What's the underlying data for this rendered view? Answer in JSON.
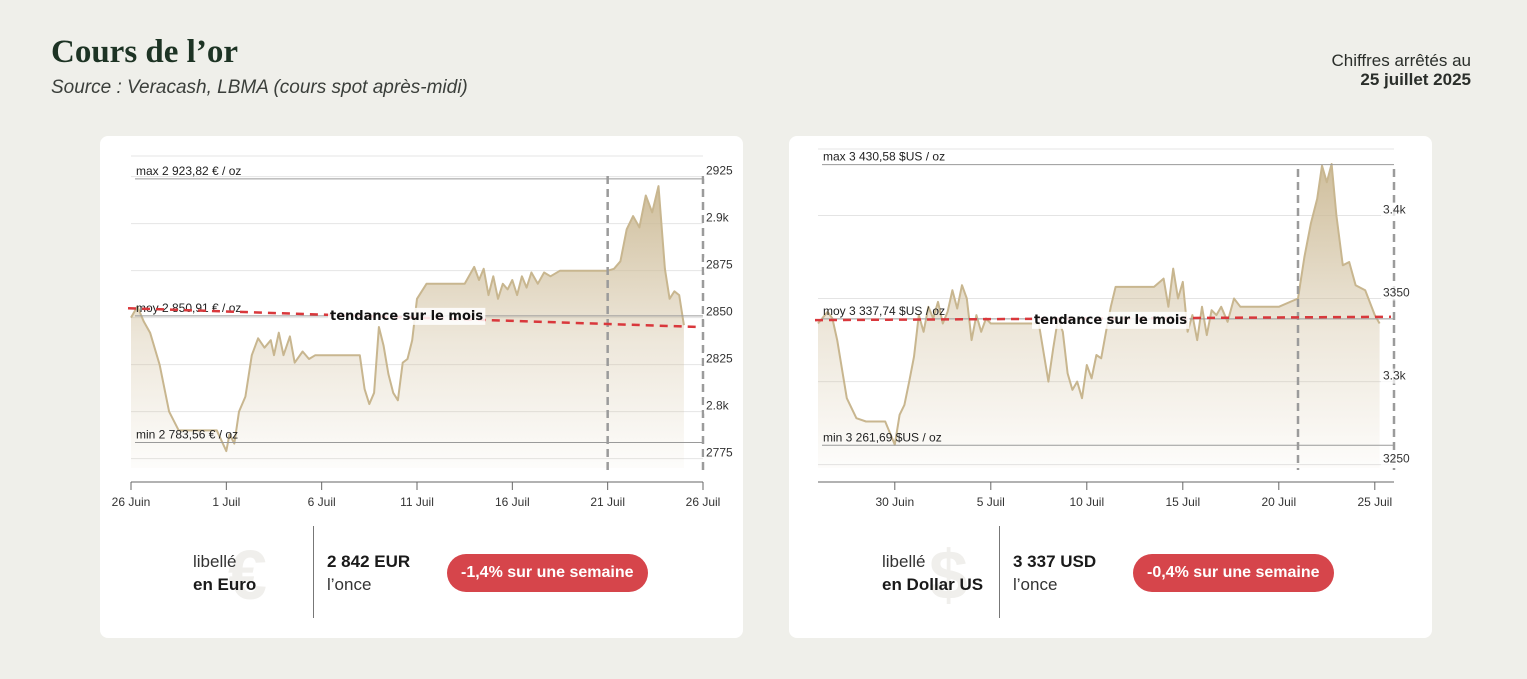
{
  "header": {
    "title": "Cours de l’or",
    "source": "Source : Veracash, LBMA (cours spot après-midi)",
    "asof_label": "Chiffres arrêtés au",
    "asof_date": "25 juillet 2025"
  },
  "colors": {
    "background": "#efefea",
    "line": "#c8b68f",
    "fill_top": "#cdbb97",
    "trend": "#d9383c",
    "badge": "#d6454b",
    "marker": "#9b9b9b"
  },
  "chart_data": [
    {
      "type": "area",
      "currency": "EUR",
      "x_start": "2025-06-26",
      "x_end": "2025-07-26",
      "ylim": [
        2770,
        2936
      ],
      "y_ticks": [
        {
          "value": 2925,
          "label": "2925"
        },
        {
          "value": 2900,
          "label": "2.9k"
        },
        {
          "value": 2875,
          "label": "2875"
        },
        {
          "value": 2850,
          "label": "2850"
        },
        {
          "value": 2825,
          "label": "2825"
        },
        {
          "value": 2800,
          "label": "2.8k"
        },
        {
          "value": 2775,
          "label": "2775"
        }
      ],
      "x_ticks": [
        {
          "date": "2025-06-26",
          "label": "26 Juin"
        },
        {
          "date": "2025-07-01",
          "label": "1 Juil"
        },
        {
          "date": "2025-07-06",
          "label": "6 Juil"
        },
        {
          "date": "2025-07-11",
          "label": "11 Juil"
        },
        {
          "date": "2025-07-16",
          "label": "16 Juil"
        },
        {
          "date": "2025-07-21",
          "label": "21 Juil"
        },
        {
          "date": "2025-07-26",
          "label": "26 Juil"
        }
      ],
      "ref_lines": {
        "max": {
          "value": 2923.82,
          "label": "max 2 923,82 € / oz"
        },
        "avg": {
          "value": 2850.91,
          "label": "moy 2 850,91 € / oz"
        },
        "min": {
          "value": 2783.56,
          "label": "min 2 783,56 € / oz"
        }
      },
      "trend": {
        "label": "tendance sur le mois",
        "start": 2855,
        "end": 2845
      },
      "week_marker": [
        "2025-07-21",
        "2025-07-26"
      ],
      "points": [
        [
          "2025-06-26",
          2850
        ],
        [
          "2025-06-26T08",
          2856
        ],
        [
          "2025-06-26T16",
          2848
        ],
        [
          "2025-06-27",
          2842
        ],
        [
          "2025-06-27T12",
          2825
        ],
        [
          "2025-06-28",
          2800
        ],
        [
          "2025-06-28T12",
          2790
        ],
        [
          "2025-06-29",
          2790
        ],
        [
          "2025-06-30",
          2790
        ],
        [
          "2025-06-30T12",
          2790
        ],
        [
          "2025-07-01",
          2779
        ],
        [
          "2025-07-01T04",
          2788
        ],
        [
          "2025-07-01T10",
          2783
        ],
        [
          "2025-07-01T16",
          2800
        ],
        [
          "2025-07-02",
          2808
        ],
        [
          "2025-07-02T08",
          2830
        ],
        [
          "2025-07-02T16",
          2839
        ],
        [
          "2025-07-03",
          2834
        ],
        [
          "2025-07-03T08",
          2838
        ],
        [
          "2025-07-03T12",
          2830
        ],
        [
          "2025-07-03T18",
          2842
        ],
        [
          "2025-07-04",
          2830
        ],
        [
          "2025-07-04T08",
          2840
        ],
        [
          "2025-07-04T14",
          2826
        ],
        [
          "2025-07-05",
          2832
        ],
        [
          "2025-07-05T08",
          2828
        ],
        [
          "2025-07-05T16",
          2830
        ],
        [
          "2025-07-06",
          2830
        ],
        [
          "2025-07-07",
          2830
        ],
        [
          "2025-07-07T12",
          2830
        ],
        [
          "2025-07-08",
          2830
        ],
        [
          "2025-07-08T06",
          2812
        ],
        [
          "2025-07-08T12",
          2804
        ],
        [
          "2025-07-08T18",
          2810
        ],
        [
          "2025-07-09",
          2845
        ],
        [
          "2025-07-09T06",
          2835
        ],
        [
          "2025-07-09T12",
          2820
        ],
        [
          "2025-07-09T18",
          2810
        ],
        [
          "2025-07-10",
          2806
        ],
        [
          "2025-07-10T06",
          2826
        ],
        [
          "2025-07-10T12",
          2828
        ],
        [
          "2025-07-10T18",
          2838
        ],
        [
          "2025-07-11",
          2860
        ],
        [
          "2025-07-11T12",
          2868
        ],
        [
          "2025-07-12",
          2868
        ],
        [
          "2025-07-13",
          2868
        ],
        [
          "2025-07-13T12",
          2868
        ],
        [
          "2025-07-14",
          2877
        ],
        [
          "2025-07-14T06",
          2870
        ],
        [
          "2025-07-14T12",
          2876
        ],
        [
          "2025-07-14T18",
          2862
        ],
        [
          "2025-07-15",
          2872
        ],
        [
          "2025-07-15T06",
          2860
        ],
        [
          "2025-07-15T12",
          2868
        ],
        [
          "2025-07-15T18",
          2865
        ],
        [
          "2025-07-16",
          2870
        ],
        [
          "2025-07-16T06",
          2862
        ],
        [
          "2025-07-16T12",
          2872
        ],
        [
          "2025-07-16T18",
          2866
        ],
        [
          "2025-07-17",
          2874
        ],
        [
          "2025-07-17T08",
          2868
        ],
        [
          "2025-07-17T16",
          2874
        ],
        [
          "2025-07-18",
          2872
        ],
        [
          "2025-07-18T12",
          2875
        ],
        [
          "2025-07-19",
          2875
        ],
        [
          "2025-07-20",
          2875
        ],
        [
          "2025-07-21",
          2875
        ],
        [
          "2025-07-21T08",
          2876
        ],
        [
          "2025-07-21T16",
          2880
        ],
        [
          "2025-07-22",
          2897
        ],
        [
          "2025-07-22T08",
          2904
        ],
        [
          "2025-07-22T16",
          2898
        ],
        [
          "2025-07-23",
          2915
        ],
        [
          "2025-07-23T08",
          2906
        ],
        [
          "2025-07-23T16",
          2920
        ],
        [
          "2025-07-24",
          2876
        ],
        [
          "2025-07-24T06",
          2860
        ],
        [
          "2025-07-24T12",
          2864
        ],
        [
          "2025-07-24T18",
          2862
        ],
        [
          "2025-07-25",
          2846
        ]
      ]
    },
    {
      "type": "area",
      "currency": "USD",
      "x_start": "2025-06-26",
      "x_end": "2025-07-26",
      "ylim": [
        3248,
        3440
      ],
      "y_ticks": [
        {
          "value": 3400,
          "label": "3.4k"
        },
        {
          "value": 3350,
          "label": "3350"
        },
        {
          "value": 3300,
          "label": "3.3k"
        },
        {
          "value": 3250,
          "label": "3250"
        }
      ],
      "x_ticks": [
        {
          "date": "2025-06-30",
          "label": "30 Juin"
        },
        {
          "date": "2025-07-05",
          "label": "5 Juil"
        },
        {
          "date": "2025-07-10",
          "label": "10 Juil"
        },
        {
          "date": "2025-07-15",
          "label": "15 Juil"
        },
        {
          "date": "2025-07-20",
          "label": "20 Juil"
        },
        {
          "date": "2025-07-25",
          "label": "25 Juil"
        }
      ],
      "ref_lines": {
        "max": {
          "value": 3430.58,
          "label": "max 3 430,58 $US / oz"
        },
        "avg": {
          "value": 3337.74,
          "label": "moy 3 337,74 $US / oz"
        },
        "min": {
          "value": 3261.69,
          "label": "min 3 261,69 $US / oz"
        }
      },
      "trend": {
        "label": "tendance sur le mois",
        "start": 3337,
        "end": 3339
      },
      "week_marker": [
        "2025-07-21",
        "2025-07-26"
      ],
      "points": [
        [
          "2025-06-26",
          3335
        ],
        [
          "2025-06-26T12",
          3342
        ],
        [
          "2025-06-26T18",
          3338
        ],
        [
          "2025-06-27",
          3325
        ],
        [
          "2025-06-27T12",
          3290
        ],
        [
          "2025-06-28",
          3278
        ],
        [
          "2025-06-28T12",
          3276
        ],
        [
          "2025-06-29",
          3276
        ],
        [
          "2025-06-29T12",
          3276
        ],
        [
          "2025-06-30",
          3262
        ],
        [
          "2025-06-30T06",
          3280
        ],
        [
          "2025-06-30T12",
          3286
        ],
        [
          "2025-06-30T18",
          3300
        ],
        [
          "2025-07-01",
          3315
        ],
        [
          "2025-07-01T06",
          3340
        ],
        [
          "2025-07-01T12",
          3330
        ],
        [
          "2025-07-01T18",
          3345
        ],
        [
          "2025-07-02",
          3338
        ],
        [
          "2025-07-02T06",
          3348
        ],
        [
          "2025-07-02T12",
          3335
        ],
        [
          "2025-07-02T18",
          3342
        ],
        [
          "2025-07-03",
          3355
        ],
        [
          "2025-07-03T06",
          3344
        ],
        [
          "2025-07-03T12",
          3358
        ],
        [
          "2025-07-03T18",
          3350
        ],
        [
          "2025-07-04",
          3325
        ],
        [
          "2025-07-04T06",
          3340
        ],
        [
          "2025-07-04T12",
          3330
        ],
        [
          "2025-07-04T18",
          3338
        ],
        [
          "2025-07-05",
          3335
        ],
        [
          "2025-07-06",
          3335
        ],
        [
          "2025-07-07",
          3335
        ],
        [
          "2025-07-07T12",
          3335
        ],
        [
          "2025-07-08",
          3300
        ],
        [
          "2025-07-08T06",
          3320
        ],
        [
          "2025-07-08T12",
          3338
        ],
        [
          "2025-07-08T18",
          3330
        ],
        [
          "2025-07-09",
          3305
        ],
        [
          "2025-07-09T06",
          3295
        ],
        [
          "2025-07-09T12",
          3300
        ],
        [
          "2025-07-09T18",
          3290
        ],
        [
          "2025-07-10",
          3310
        ],
        [
          "2025-07-10T06",
          3302
        ],
        [
          "2025-07-10T12",
          3316
        ],
        [
          "2025-07-10T18",
          3314
        ],
        [
          "2025-07-11",
          3330
        ],
        [
          "2025-07-11T06",
          3345
        ],
        [
          "2025-07-11T12",
          3357
        ],
        [
          "2025-07-12",
          3357
        ],
        [
          "2025-07-13",
          3357
        ],
        [
          "2025-07-13T12",
          3357
        ],
        [
          "2025-07-14",
          3362
        ],
        [
          "2025-07-14T06",
          3345
        ],
        [
          "2025-07-14T12",
          3368
        ],
        [
          "2025-07-14T18",
          3350
        ],
        [
          "2025-07-15",
          3360
        ],
        [
          "2025-07-15T06",
          3330
        ],
        [
          "2025-07-15T12",
          3340
        ],
        [
          "2025-07-15T18",
          3325
        ],
        [
          "2025-07-16",
          3345
        ],
        [
          "2025-07-16T06",
          3328
        ],
        [
          "2025-07-16T12",
          3343
        ],
        [
          "2025-07-16T18",
          3340
        ],
        [
          "2025-07-17",
          3345
        ],
        [
          "2025-07-17T08",
          3336
        ],
        [
          "2025-07-17T16",
          3350
        ],
        [
          "2025-07-18",
          3345
        ],
        [
          "2025-07-18T12",
          3345
        ],
        [
          "2025-07-19",
          3345
        ],
        [
          "2025-07-20",
          3345
        ],
        [
          "2025-07-21",
          3350
        ],
        [
          "2025-07-21T08",
          3375
        ],
        [
          "2025-07-21T16",
          3395
        ],
        [
          "2025-07-22",
          3410
        ],
        [
          "2025-07-22T06",
          3430
        ],
        [
          "2025-07-22T12",
          3420
        ],
        [
          "2025-07-22T18",
          3431
        ],
        [
          "2025-07-23",
          3400
        ],
        [
          "2025-07-23T08",
          3370
        ],
        [
          "2025-07-23T16",
          3372
        ],
        [
          "2025-07-24",
          3358
        ],
        [
          "2025-07-24T12",
          3355
        ],
        [
          "2025-07-25",
          3340
        ],
        [
          "2025-07-25T06",
          3335
        ]
      ]
    }
  ],
  "panels": [
    {
      "currency_glyph": "€",
      "label_small": "libellé",
      "label_strong": "en Euro",
      "price_value": "2 842 EUR",
      "price_unit": "l’once",
      "weekly_change": "-1,4% sur une semaine"
    },
    {
      "currency_glyph": "$",
      "label_small": "libellé",
      "label_strong": "en Dollar US",
      "price_value": "3 337 USD",
      "price_unit": "l’once",
      "weekly_change": "-0,4% sur une semaine"
    }
  ]
}
